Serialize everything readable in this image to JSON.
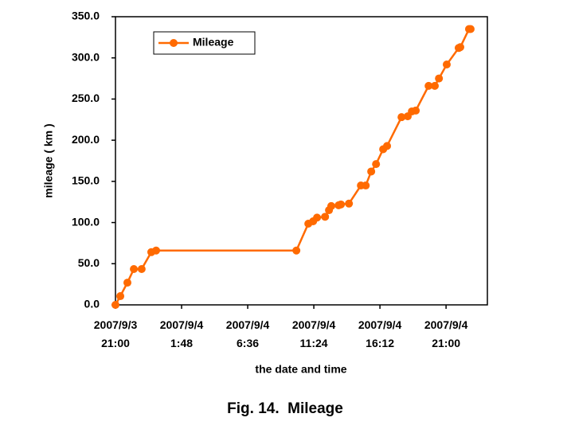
{
  "chart_data": {
    "type": "line",
    "caption": "Fig. 14.  Mileage",
    "x_label": "the date and time",
    "y_label": "mileage ( km )",
    "legend": "top-left",
    "x": [
      "2007/9/3 21:00",
      "2007/9/3 21:21",
      "2007/9/3 21:52",
      "2007/9/3 22:20",
      "2007/9/3 22:54",
      "2007/9/3 23:36",
      "2007/9/3 23:57",
      "2007/9/4 10:08",
      "2007/9/4 11:00",
      "2007/9/4 11:21",
      "2007/9/4 11:38",
      "2007/9/4 12:13",
      "2007/9/4 12:30",
      "2007/9/4 12:40",
      "2007/9/4 13:12",
      "2007/9/4 13:22",
      "2007/9/4 13:57",
      "2007/9/4 14:49",
      "2007/9/4 15:10",
      "2007/9/4 15:34",
      "2007/9/4 15:55",
      "2007/9/4 16:26",
      "2007/9/4 16:43",
      "2007/9/4 17:46",
      "2007/9/4 18:13",
      "2007/9/4 18:31",
      "2007/9/4 18:48",
      "2007/9/4 19:44",
      "2007/9/4 20:11",
      "2007/9/4 20:29",
      "2007/9/4 21:03",
      "2007/9/4 21:55",
      "2007/9/4 22:02",
      "2007/9/4 22:40",
      "2007/9/4 22:47"
    ],
    "series": [
      {
        "name": "Mileage",
        "color": "#ff6a00",
        "values": [
          0,
          10.6,
          27,
          43.5,
          43.5,
          64,
          66,
          66,
          98.6,
          101.5,
          106,
          107,
          115,
          120,
          121,
          122,
          123,
          145,
          145,
          162,
          171,
          189,
          193,
          228,
          229,
          235,
          236,
          266,
          266,
          275,
          292,
          312,
          313,
          335,
          335
        ]
      }
    ],
    "xlim": [
      "2007/9/3 21:00",
      "2007/9/5 0:00"
    ],
    "xticks": [
      "2007/9/3 21:00",
      "2007/9/4 1:48",
      "2007/9/4 6:36",
      "2007/9/4 11:24",
      "2007/9/4 16:12",
      "2007/9/4 21:00"
    ],
    "ylim": [
      0,
      350
    ],
    "yticks": [
      {
        "value": 0,
        "label": "0.0"
      },
      {
        "value": 50,
        "label": "50.0"
      },
      {
        "value": 100,
        "label": "100.0"
      },
      {
        "value": 150,
        "label": "150.0"
      },
      {
        "value": 200,
        "label": "200.0"
      },
      {
        "value": 250,
        "label": "250.0"
      },
      {
        "value": 300,
        "label": "300.0"
      },
      {
        "value": 350,
        "label": "350.0"
      }
    ]
  }
}
